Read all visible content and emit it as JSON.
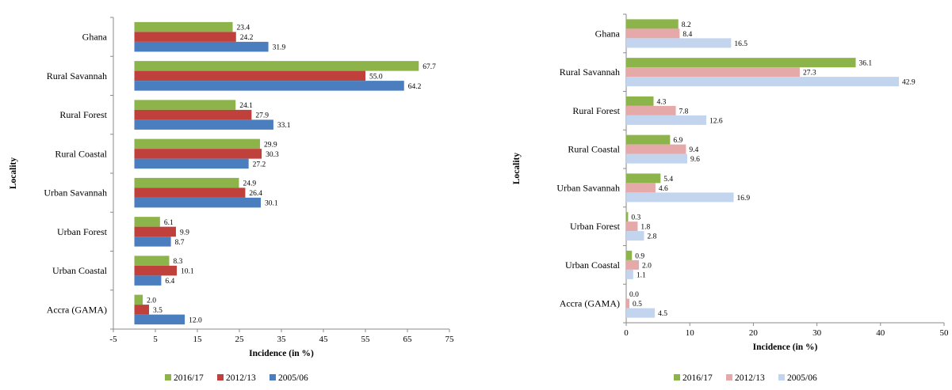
{
  "chart_data": [
    {
      "type": "bar",
      "orientation": "horizontal",
      "categories": [
        "Ghana",
        "Rural Savannah",
        "Rural Forest",
        "Rural Coastal",
        "Urban Savannah",
        "Urban Forest",
        "Urban Coastal",
        "Accra (GAMA)"
      ],
      "series": [
        {
          "name": "2016/17",
          "color": "#8db44a",
          "values": [
            23.4,
            67.7,
            24.1,
            29.9,
            24.9,
            6.1,
            8.3,
            2.0
          ]
        },
        {
          "name": "2012/13",
          "color": "#c0403c",
          "values": [
            24.2,
            55.0,
            27.9,
            30.3,
            26.4,
            9.9,
            10.1,
            3.5
          ]
        },
        {
          "name": "2005/06",
          "color": "#4a7ebf",
          "values": [
            31.9,
            64.2,
            33.1,
            27.2,
            30.1,
            8.7,
            6.4,
            12.0
          ]
        }
      ],
      "value_labels": {
        "2016/17": [
          "23.4",
          "67.7",
          "24.1",
          "29.9",
          "24.9",
          "6.1",
          "8.3",
          "2.0"
        ],
        "2012/13": [
          "24.2",
          "55.0",
          "27.9",
          "30.3",
          "26.4",
          "9.9",
          "10.1",
          "3.5"
        ],
        "2005/06": [
          "31.9",
          "64.2",
          "33.1",
          "27.2",
          "30.1",
          "8.7",
          "6.4",
          "12.0"
        ]
      },
      "xlabel": "Incidence (in %)",
      "ylabel": "Locality",
      "xlim": [
        -5,
        75
      ],
      "xticks": [
        "-5",
        "5",
        "15",
        "25",
        "35",
        "45",
        "55",
        "65",
        "75"
      ],
      "legend": "bottom",
      "grid": false
    },
    {
      "type": "bar",
      "orientation": "horizontal",
      "categories": [
        "Ghana",
        "Rural Savannah",
        "Rural Forest",
        "Rural Coastal",
        "Urban Savannah",
        "Urban Forest",
        "Urban Coastal",
        "Accra (GAMA)"
      ],
      "series": [
        {
          "name": "2016/17",
          "color": "#8db44a",
          "values": [
            8.2,
            36.1,
            4.3,
            6.9,
            5.4,
            0.3,
            0.9,
            0.0
          ]
        },
        {
          "name": "2012/13",
          "color": "#e6a9a9",
          "values": [
            8.4,
            27.3,
            7.8,
            9.4,
            4.6,
            1.8,
            2.0,
            0.5
          ]
        },
        {
          "name": "2005/06",
          "color": "#c2d4ee",
          "values": [
            16.5,
            42.9,
            12.6,
            9.6,
            16.9,
            2.8,
            1.1,
            4.5
          ]
        }
      ],
      "value_labels": {
        "2016/17": [
          "8.2",
          "36.1",
          "4.3",
          "6.9",
          "5.4",
          "0.3",
          "0.9",
          "0.0"
        ],
        "2012/13": [
          "8.4",
          "27.3",
          "7.8",
          "9.4",
          "4.6",
          "1.8",
          "2.0",
          "0.5"
        ],
        "2005/06": [
          "16.5",
          "42.9",
          "12.6",
          "9.6",
          "16.9",
          "2.8",
          "1.1",
          "4.5"
        ]
      },
      "xlabel": "Incidence (in %)",
      "ylabel": "Locality",
      "xlim": [
        0,
        50
      ],
      "xticks": [
        "0",
        "10",
        "20",
        "30",
        "40",
        "50"
      ],
      "legend": "bottom",
      "grid": false
    }
  ]
}
